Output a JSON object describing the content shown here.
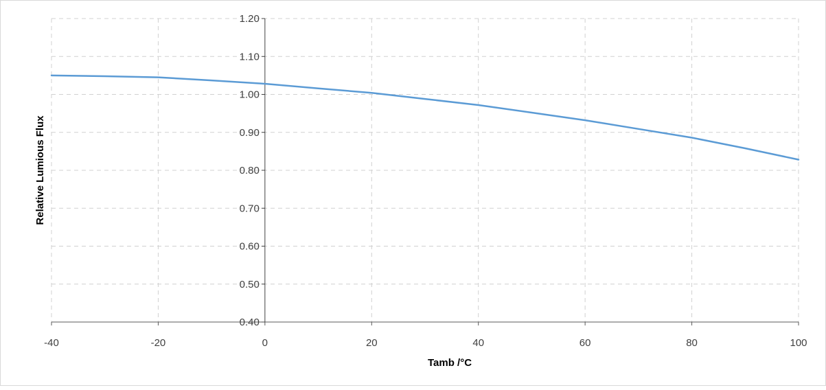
{
  "chart_data": {
    "type": "line",
    "title": "",
    "xlabel": "Tamb /°C",
    "ylabel": "Relative Lumious Flux",
    "xlim": [
      -40,
      100
    ],
    "ylim": [
      0.4,
      1.2
    ],
    "x_ticks": [
      -40,
      -20,
      0,
      20,
      40,
      60,
      80,
      100
    ],
    "y_ticks": [
      0.4,
      0.5,
      0.6,
      0.7,
      0.8,
      0.9,
      1.0,
      1.1,
      1.2
    ],
    "x_tick_labels": [
      "-40",
      "-20",
      "0",
      "20",
      "40",
      "60",
      "80",
      "100"
    ],
    "y_tick_labels": [
      "0.40",
      "0.50",
      "0.60",
      "0.70",
      "0.80",
      "0.90",
      "1.00",
      "1.10",
      "1.20"
    ],
    "grid": true,
    "grid_style": "dashed",
    "series": [
      {
        "color": "#5b9bd5",
        "x": [
          -40,
          -30,
          -20,
          -10,
          0,
          10,
          20,
          30,
          40,
          50,
          60,
          70,
          80,
          90,
          100
        ],
        "y": [
          1.05,
          1.048,
          1.045,
          1.037,
          1.028,
          1.016,
          1.004,
          0.988,
          0.972,
          0.952,
          0.932,
          0.909,
          0.886,
          0.858,
          0.828
        ]
      }
    ]
  }
}
